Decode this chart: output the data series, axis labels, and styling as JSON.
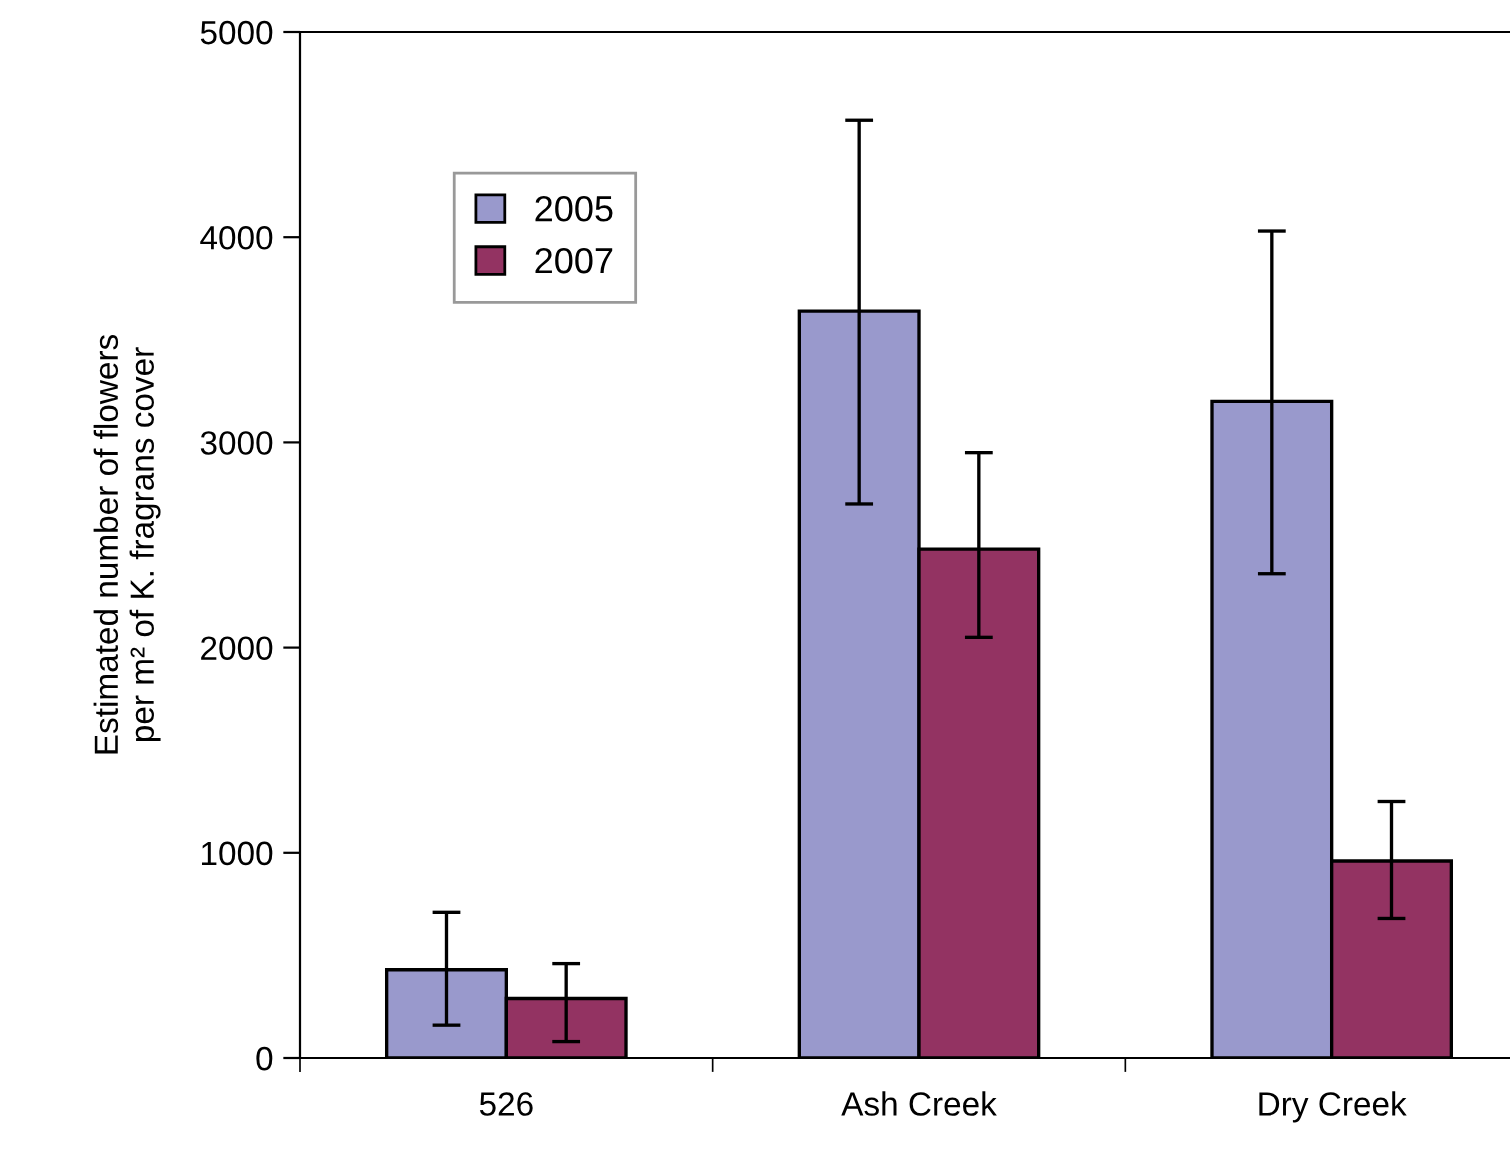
{
  "chart_data": {
    "type": "bar",
    "ylabel": "Estimated number of flowers\nper m² of K. fragrans cover",
    "categories": [
      "526",
      "Ash Creek",
      "Dry Creek"
    ],
    "series": [
      {
        "name": "2005",
        "color": "#9999cc",
        "values": [
          430,
          3640,
          3200
        ],
        "errors": [
          [
            160,
            710
          ],
          [
            2700,
            4570
          ],
          [
            2360,
            4030
          ]
        ]
      },
      {
        "name": "2007",
        "color": "#933362",
        "values": [
          290,
          2480,
          960
        ],
        "errors": [
          [
            80,
            460
          ],
          [
            2050,
            2950
          ],
          [
            680,
            1250
          ]
        ]
      }
    ],
    "ylim": [
      0,
      5000
    ],
    "yticks": [
      0,
      1000,
      2000,
      3000,
      4000,
      5000
    ],
    "legend": "top left",
    "grid": false
  }
}
